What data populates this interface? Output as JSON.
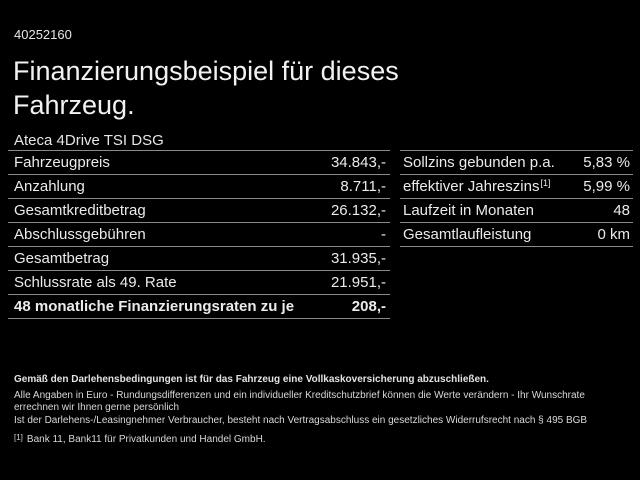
{
  "header": {
    "vehicle_id": "40252160",
    "title_line1": "Finanzierungsbeispiel für dieses",
    "title_line2": "Fahrzeug.",
    "model": "Ateca 4Drive TSI DSG"
  },
  "left_table": {
    "rows": [
      {
        "label": "Fahrzeugpreis",
        "value": "34.843,-"
      },
      {
        "label": "Anzahlung",
        "value": "8.711,-"
      },
      {
        "label": "Gesamtkreditbetrag",
        "value": "26.132,-"
      },
      {
        "label": "Abschlussgebühren",
        "value": "-"
      },
      {
        "label": "Gesamtbetrag",
        "value": "31.935,-"
      },
      {
        "label": "Schlussrate als 49. Rate",
        "value": "21.951,-"
      },
      {
        "label": "48 monatliche Finanzierungsraten zu je",
        "value": "208,-"
      }
    ]
  },
  "right_table": {
    "rows": [
      {
        "label": "Sollzins gebunden p.a.",
        "sup": "",
        "value": "5,83 %"
      },
      {
        "label": "effektiver Jahreszins",
        "sup": "[1]",
        "value": "5,99 %"
      },
      {
        "label": "Laufzeit in Monaten",
        "sup": "",
        "value": "48"
      },
      {
        "label": "Gesamtlaufleistung",
        "sup": "",
        "value": "0 km"
      }
    ]
  },
  "footer": {
    "line1": "Gemäß den Darlehensbedingungen ist für das Fahrzeug eine Vollkaskoversicherung abzuschließen.",
    "line2": "Alle Angaben in Euro - Rundungsdifferenzen und ein individueller Kreditschutzbrief können die Werte verändern - Ihr Wunschrate errechnen wir Ihnen gerne persönlich",
    "line3": "Ist der Darlehens-/Leasingnehmer Verbraucher, besteht nach Vertragsabschluss ein gesetzliches Widerrufsrecht nach § 495 BGB",
    "footnote_marker": "[1]",
    "footnote_text": "Bank 11, Bank11 für Privatkunden und Handel GmbH."
  },
  "colors": {
    "background": "#000000",
    "text": "#ededed",
    "divider": "#8a8a8a"
  }
}
